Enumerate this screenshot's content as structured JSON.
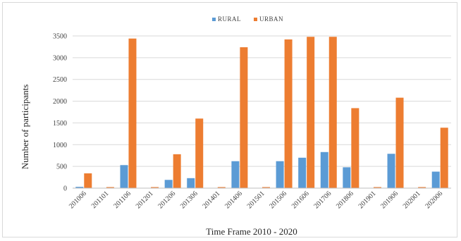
{
  "chart_data": {
    "type": "bar",
    "xlabel": "Time Frame 2010 - 2020",
    "ylabel": "Number of participants",
    "ylim": [
      0,
      3500
    ],
    "yticks": [
      "0",
      "500",
      "1000",
      "1500",
      "2000",
      "2500",
      "3000",
      "3500"
    ],
    "grid": true,
    "legend_position": "top-center",
    "categories": [
      "201006",
      "201101",
      "201106",
      "201201",
      "201206",
      "201306",
      "201401",
      "201406",
      "201501",
      "201506",
      "201606",
      "201706",
      "201806",
      "201901",
      "201906",
      "202001",
      "202006"
    ],
    "series": [
      {
        "name": "RURAL",
        "color": "#5b9bd5",
        "values": [
          30,
          0,
          530,
          0,
          190,
          230,
          0,
          620,
          0,
          620,
          700,
          830,
          480,
          0,
          790,
          0,
          380
        ]
      },
      {
        "name": "URBAN",
        "color": "#ed7d31",
        "values": [
          340,
          10,
          3440,
          10,
          780,
          1600,
          10,
          3240,
          10,
          3420,
          3480,
          3480,
          1840,
          20,
          2080,
          10,
          1390
        ]
      }
    ]
  }
}
